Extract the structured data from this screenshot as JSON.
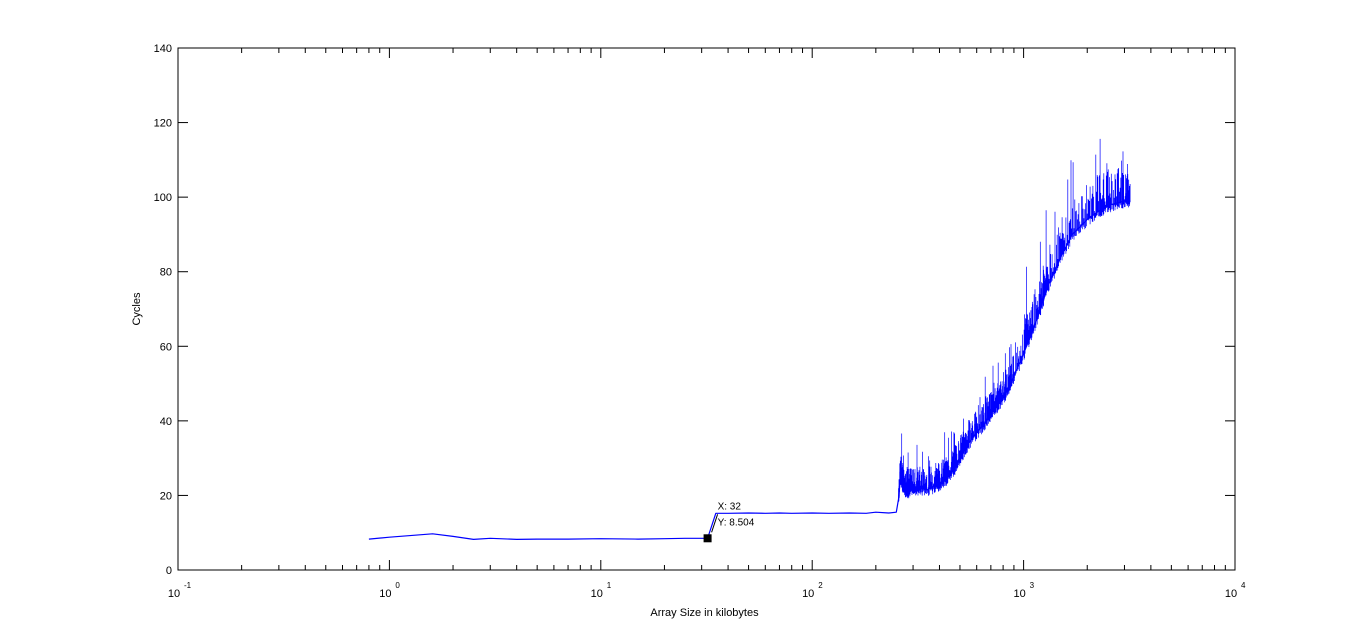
{
  "chart_data": {
    "type": "line",
    "xlabel": "Array Size in kilobytes",
    "ylabel": "Cycles",
    "xscale": "log",
    "xlim": [
      0.1,
      10000
    ],
    "ylim": [
      0,
      140
    ],
    "x_ticks": [
      {
        "value": 0.1,
        "base": "10",
        "exp": "-1"
      },
      {
        "value": 1,
        "base": "10",
        "exp": "0"
      },
      {
        "value": 10,
        "base": "10",
        "exp": "1"
      },
      {
        "value": 100,
        "base": "10",
        "exp": "2"
      },
      {
        "value": 1000,
        "base": "10",
        "exp": "3"
      },
      {
        "value": 10000,
        "base": "10",
        "exp": "4"
      }
    ],
    "y_ticks": [
      {
        "value": 0,
        "label": "0"
      },
      {
        "value": 20,
        "label": "20"
      },
      {
        "value": 40,
        "label": "40"
      },
      {
        "value": 60,
        "label": "60"
      },
      {
        "value": 80,
        "label": "80"
      },
      {
        "value": 100,
        "label": "100"
      },
      {
        "value": 120,
        "label": "120"
      },
      {
        "value": 140,
        "label": "140"
      }
    ],
    "grid": false,
    "series_color": "#0000ff",
    "series": [
      {
        "x": [
          0.8,
          1.0,
          1.3,
          1.6,
          2.0,
          2.5,
          3.0,
          4.0,
          5.0,
          7.0,
          10,
          15,
          20,
          25,
          32,
          35,
          40,
          50,
          60,
          70,
          80,
          100,
          120,
          150,
          180,
          200,
          230,
          250,
          256,
          262,
          270,
          280,
          300,
          320,
          350,
          380,
          400,
          420,
          450,
          480,
          512,
          550,
          600,
          650,
          700,
          750,
          800,
          850,
          900,
          1000,
          1100,
          1200,
          1300,
          1500,
          1700,
          2000,
          2300,
          2600,
          3000,
          3200
        ],
        "y": [
          8.3,
          8.8,
          9.3,
          9.7,
          9.0,
          8.2,
          8.5,
          8.2,
          8.3,
          8.3,
          8.4,
          8.3,
          8.4,
          8.5,
          8.5,
          15.2,
          15.2,
          15.3,
          15.2,
          15.3,
          15.2,
          15.3,
          15.2,
          15.3,
          15.2,
          15.5,
          15.3,
          15.5,
          19.0,
          25.0,
          22.0,
          21.0,
          21.5,
          22.0,
          21.5,
          22.5,
          23.0,
          24.0,
          25.5,
          28.0,
          31.0,
          34.0,
          37.0,
          39.0,
          42.0,
          44.0,
          46.0,
          49.0,
          52.0,
          58.0,
          64.0,
          70.0,
          76.0,
          84.0,
          90.0,
          94.0,
          96.5,
          98.0,
          99.0,
          99.0
        ]
      }
    ],
    "annotation": {
      "x": 32,
      "y": 8.504,
      "label_x": "X: 32",
      "label_y": "Y: 8.504"
    }
  }
}
